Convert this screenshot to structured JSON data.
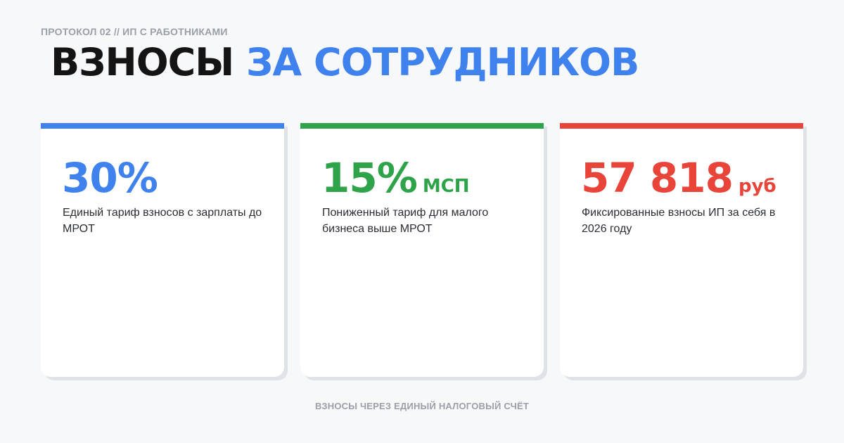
{
  "header": {
    "eyebrow": "ПРОТОКОЛ 02 // ИП С РАБОТНИКАМИ",
    "title_part1": "ВЗНОСЫ",
    "title_part2": "ЗА СОТРУДНИКОВ"
  },
  "colors": {
    "blue": "#3f82ee",
    "green": "#2fa34a",
    "red": "#e8443a"
  },
  "cards": [
    {
      "value": "30%",
      "unit": "",
      "description": "Единый тариф взносов с зарплаты до МРОТ",
      "accent": "#3f82ee"
    },
    {
      "value": "15%",
      "unit": "МСП",
      "description": "Пониженный тариф для малого бизнеса выше МРОТ",
      "accent": "#2fa34a"
    },
    {
      "value": "57 818",
      "unit": "руб",
      "description": "Фиксированные взносы ИП за себя в 2026 году",
      "accent": "#e8443a"
    }
  ],
  "footer": {
    "text": "ВЗНОСЫ ЧЕРЕЗ ЕДИНЫЙ НАЛОГОВЫЙ СЧЁТ"
  }
}
